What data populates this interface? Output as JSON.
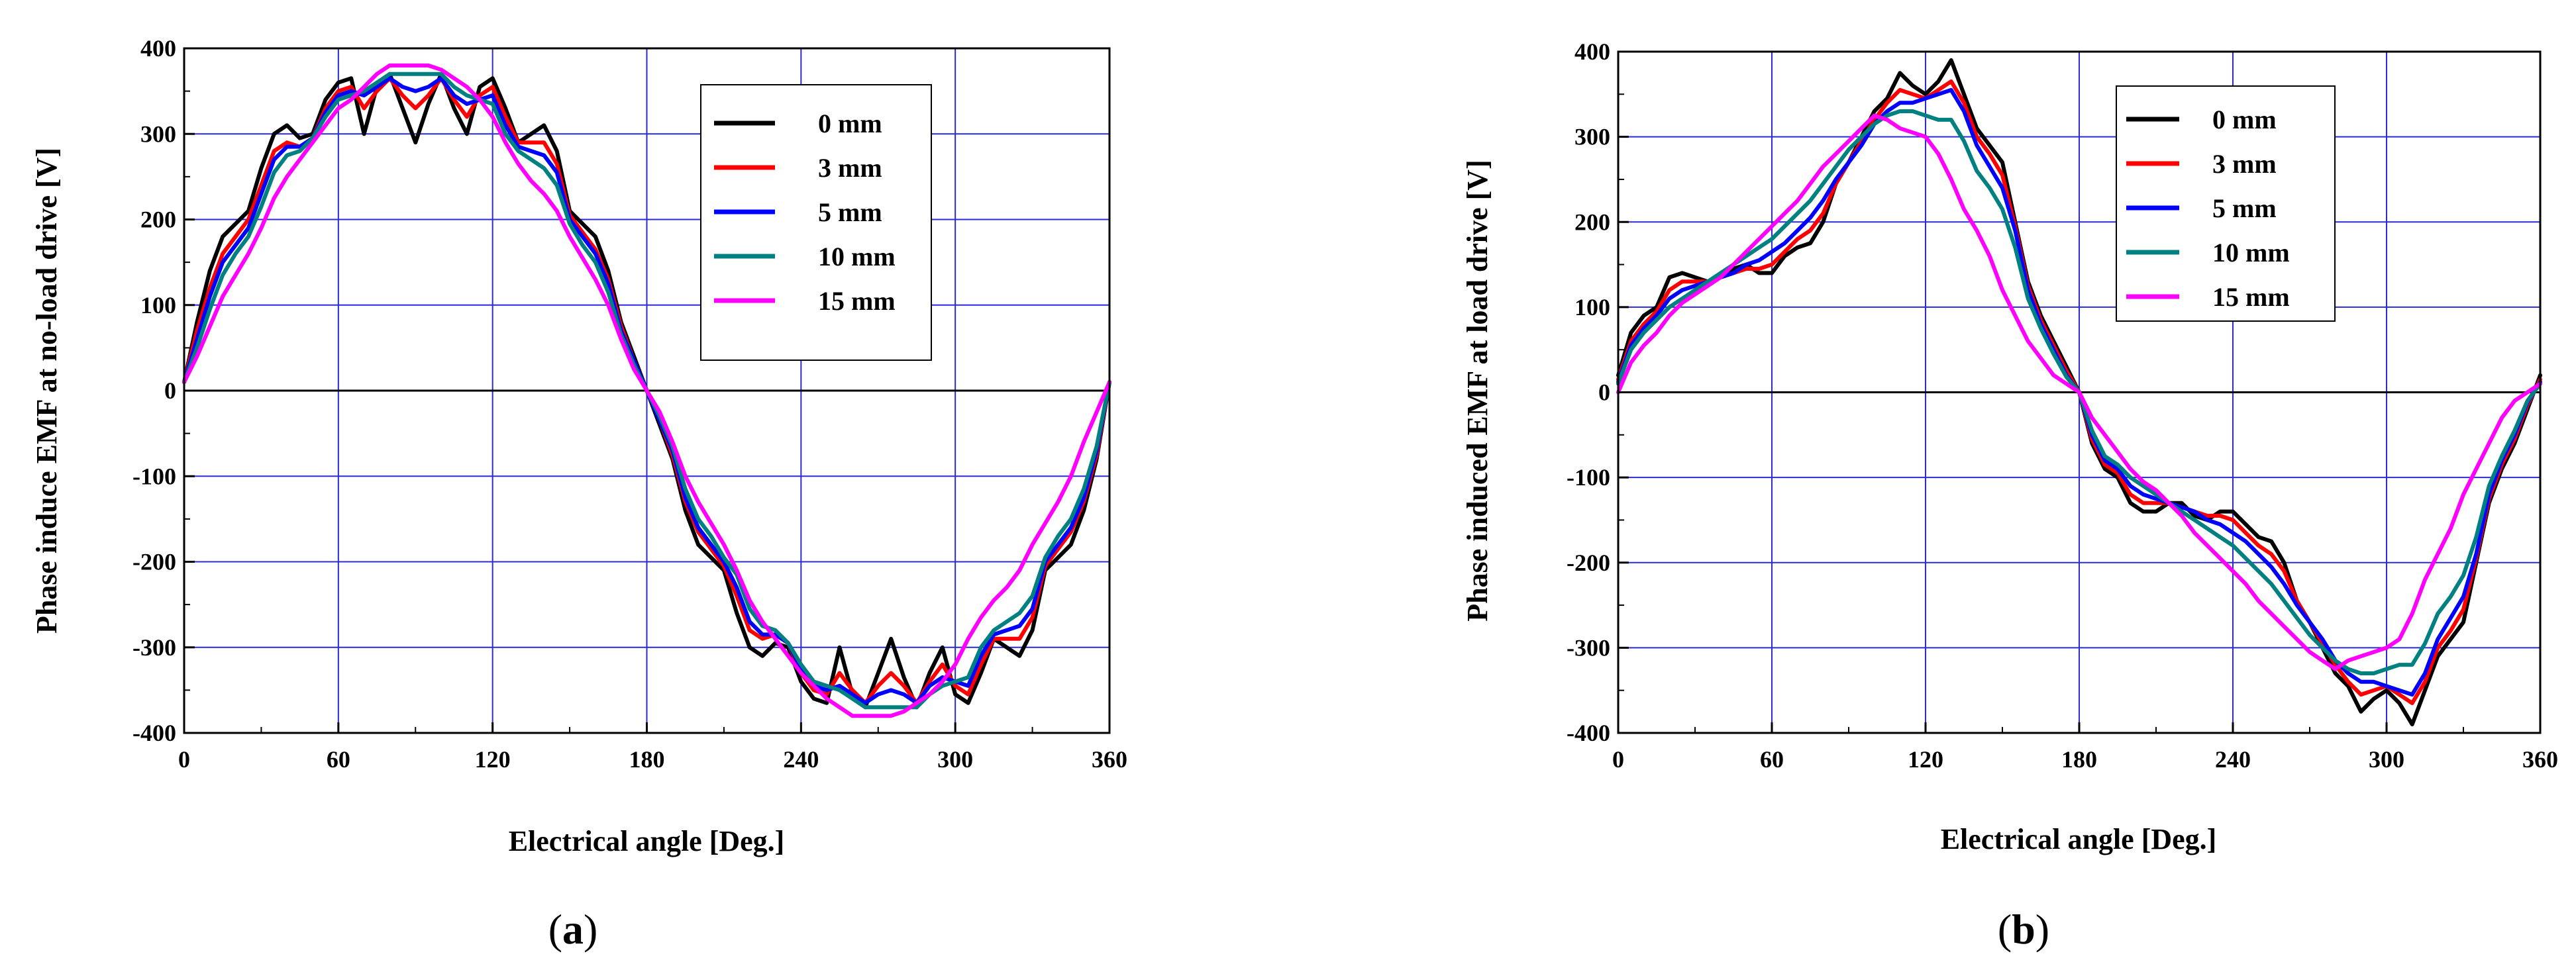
{
  "chart_data": [
    {
      "type": "line",
      "panel_label": "a",
      "title": "",
      "xlabel": "Electrical angle [Deg.]",
      "ylabel": "Phase induce EMF at no-load drive [V]",
      "xlim": [
        0,
        360
      ],
      "ylim": [
        -400,
        400
      ],
      "xticks": [
        0,
        60,
        120,
        180,
        240,
        300,
        360
      ],
      "yticks": [
        400,
        300,
        200,
        100,
        0,
        -100,
        -200,
        -300,
        -400
      ],
      "grid": true,
      "legend_position": "top-right",
      "x": [
        0,
        5,
        10,
        15,
        20,
        25,
        30,
        35,
        40,
        45,
        50,
        55,
        60,
        65,
        70,
        75,
        80,
        85,
        90,
        95,
        100,
        105,
        110,
        115,
        120,
        125,
        130,
        135,
        140,
        145,
        150,
        155,
        160,
        165,
        170,
        175,
        180,
        185,
        190,
        195,
        200,
        205,
        210,
        215,
        220,
        225,
        230,
        235,
        240,
        245,
        250,
        255,
        260,
        265,
        270,
        275,
        280,
        285,
        290,
        295,
        300,
        305,
        310,
        315,
        320,
        325,
        330,
        335,
        340,
        345,
        350,
        355,
        360
      ],
      "series": [
        {
          "name": "0 mm",
          "color": "#000000",
          "values": [
            10,
            80,
            140,
            180,
            195,
            210,
            260,
            300,
            310,
            295,
            300,
            340,
            360,
            365,
            300,
            355,
            370,
            330,
            290,
            335,
            370,
            330,
            300,
            355,
            365,
            330,
            290,
            300,
            310,
            280,
            210,
            195,
            180,
            140,
            80,
            40,
            0,
            -40,
            -80,
            -140,
            -180,
            -195,
            -210,
            -260,
            -300,
            -310,
            -295,
            -300,
            -340,
            -360,
            -365,
            -300,
            -355,
            -370,
            -330,
            -290,
            -335,
            -370,
            -330,
            -300,
            -355,
            -365,
            -330,
            -290,
            -300,
            -310,
            -280,
            -210,
            -195,
            -180,
            -140,
            -80,
            10
          ]
        },
        {
          "name": "3 mm",
          "color": "#ff0000",
          "values": [
            10,
            70,
            120,
            160,
            180,
            200,
            240,
            280,
            290,
            285,
            295,
            330,
            350,
            355,
            330,
            350,
            365,
            345,
            330,
            345,
            365,
            340,
            320,
            345,
            355,
            320,
            290,
            290,
            290,
            265,
            205,
            185,
            165,
            130,
            75,
            35,
            0,
            -35,
            -75,
            -130,
            -165,
            -185,
            -205,
            -240,
            -280,
            -290,
            -285,
            -295,
            -330,
            -350,
            -355,
            -330,
            -350,
            -365,
            -345,
            -330,
            -345,
            -365,
            -340,
            -320,
            -345,
            -355,
            -320,
            -290,
            -290,
            -290,
            -265,
            -205,
            -185,
            -165,
            -130,
            -75,
            10
          ]
        },
        {
          "name": "5 mm",
          "color": "#0000ff",
          "values": [
            10,
            60,
            110,
            150,
            170,
            190,
            230,
            270,
            285,
            285,
            295,
            325,
            345,
            350,
            345,
            355,
            365,
            355,
            350,
            355,
            365,
            345,
            335,
            340,
            345,
            310,
            285,
            280,
            275,
            255,
            200,
            180,
            160,
            125,
            70,
            35,
            0,
            -35,
            -70,
            -125,
            -160,
            -180,
            -200,
            -230,
            -270,
            -285,
            -285,
            -295,
            -325,
            -345,
            -350,
            -345,
            -355,
            -365,
            -355,
            -350,
            -355,
            -365,
            -345,
            -335,
            -340,
            -345,
            -310,
            -285,
            -280,
            -275,
            -255,
            -200,
            -180,
            -160,
            -125,
            -70,
            10
          ]
        },
        {
          "name": "10 mm",
          "color": "#008080",
          "values": [
            10,
            50,
            95,
            135,
            160,
            180,
            215,
            255,
            275,
            280,
            295,
            320,
            340,
            345,
            350,
            360,
            370,
            370,
            370,
            370,
            370,
            355,
            345,
            340,
            335,
            300,
            280,
            270,
            260,
            240,
            195,
            170,
            150,
            115,
            65,
            30,
            0,
            -30,
            -65,
            -115,
            -150,
            -170,
            -195,
            -215,
            -255,
            -275,
            -280,
            -295,
            -320,
            -340,
            -345,
            -350,
            -360,
            -370,
            -370,
            -370,
            -370,
            -370,
            -355,
            -345,
            -340,
            -335,
            -300,
            -280,
            -270,
            -260,
            -240,
            -195,
            -170,
            -150,
            -115,
            -65,
            10
          ]
        },
        {
          "name": "15 mm",
          "color": "#ff00ff",
          "values": [
            10,
            40,
            75,
            110,
            135,
            160,
            190,
            225,
            250,
            270,
            290,
            310,
            330,
            340,
            355,
            370,
            380,
            380,
            380,
            380,
            375,
            365,
            355,
            340,
            320,
            290,
            265,
            245,
            230,
            210,
            180,
            155,
            130,
            100,
            60,
            25,
            0,
            -25,
            -60,
            -100,
            -130,
            -155,
            -180,
            -210,
            -245,
            -270,
            -290,
            -310,
            -330,
            -345,
            -360,
            -370,
            -380,
            -380,
            -380,
            -380,
            -375,
            -365,
            -355,
            -340,
            -320,
            -290,
            -265,
            -245,
            -230,
            -210,
            -180,
            -155,
            -130,
            -100,
            -60,
            -25,
            10
          ]
        }
      ]
    },
    {
      "type": "line",
      "panel_label": "b",
      "title": "",
      "xlabel": "Electrical angle [Deg.]",
      "ylabel": "Phase induced EMF at load drive [V]",
      "xlim": [
        0,
        360
      ],
      "ylim": [
        -400,
        400
      ],
      "xticks": [
        0,
        60,
        120,
        180,
        240,
        300,
        360
      ],
      "yticks": [
        400,
        300,
        200,
        100,
        0,
        -100,
        -200,
        -300,
        -400
      ],
      "grid": true,
      "legend_position": "top-center",
      "x": [
        0,
        5,
        10,
        15,
        20,
        25,
        30,
        35,
        40,
        45,
        50,
        55,
        60,
        65,
        70,
        75,
        80,
        85,
        90,
        95,
        100,
        105,
        110,
        115,
        120,
        125,
        130,
        135,
        140,
        145,
        150,
        155,
        160,
        165,
        170,
        175,
        180,
        185,
        190,
        195,
        200,
        205,
        210,
        215,
        220,
        225,
        230,
        235,
        240,
        245,
        250,
        255,
        260,
        265,
        270,
        275,
        280,
        285,
        290,
        295,
        300,
        305,
        310,
        315,
        320,
        325,
        330,
        335,
        340,
        345,
        350,
        355,
        360
      ],
      "series": [
        {
          "name": "0 mm",
          "color": "#000000",
          "values": [
            20,
            70,
            90,
            100,
            135,
            140,
            135,
            130,
            135,
            145,
            150,
            140,
            140,
            160,
            170,
            175,
            200,
            245,
            270,
            300,
            330,
            345,
            375,
            360,
            350,
            365,
            390,
            350,
            310,
            290,
            270,
            200,
            130,
            90,
            60,
            30,
            0,
            -60,
            -90,
            -100,
            -130,
            -140,
            -140,
            -130,
            -130,
            -145,
            -150,
            -140,
            -140,
            -155,
            -170,
            -175,
            -200,
            -245,
            -270,
            -300,
            -330,
            -345,
            -375,
            -360,
            -350,
            -365,
            -390,
            -350,
            -310,
            -290,
            -270,
            -200,
            -130,
            -90,
            -60,
            -20,
            20
          ]
        },
        {
          "name": "3 mm",
          "color": "#ff0000",
          "values": [
            15,
            60,
            80,
            95,
            120,
            130,
            130,
            130,
            135,
            140,
            145,
            145,
            150,
            165,
            180,
            190,
            210,
            245,
            270,
            295,
            320,
            340,
            355,
            350,
            345,
            355,
            365,
            340,
            300,
            280,
            255,
            195,
            125,
            85,
            55,
            25,
            0,
            -55,
            -85,
            -95,
            -120,
            -130,
            -130,
            -130,
            -135,
            -140,
            -145,
            -145,
            -150,
            -165,
            -180,
            -190,
            -210,
            -245,
            -270,
            -295,
            -320,
            -340,
            -355,
            -350,
            -345,
            -355,
            -365,
            -340,
            -300,
            -280,
            -255,
            -195,
            -125,
            -85,
            -55,
            -15,
            15
          ]
        },
        {
          "name": "5 mm",
          "color": "#0000ff",
          "values": [
            12,
            55,
            75,
            90,
            110,
            120,
            125,
            130,
            135,
            140,
            150,
            155,
            165,
            175,
            190,
            205,
            225,
            250,
            270,
            290,
            315,
            330,
            340,
            340,
            345,
            350,
            355,
            330,
            290,
            265,
            240,
            190,
            120,
            80,
            50,
            20,
            0,
            -50,
            -80,
            -90,
            -110,
            -120,
            -125,
            -130,
            -135,
            -140,
            -150,
            -155,
            -165,
            -175,
            -190,
            -205,
            -225,
            -250,
            -270,
            -290,
            -315,
            -330,
            -340,
            -340,
            -345,
            -350,
            -355,
            -330,
            -290,
            -265,
            -240,
            -190,
            -120,
            -80,
            -50,
            -12,
            12
          ]
        },
        {
          "name": "10 mm",
          "color": "#008080",
          "values": [
            10,
            50,
            70,
            85,
            100,
            110,
            120,
            130,
            140,
            150,
            160,
            170,
            180,
            195,
            210,
            225,
            245,
            265,
            285,
            300,
            315,
            325,
            330,
            330,
            325,
            320,
            320,
            295,
            260,
            240,
            215,
            170,
            110,
            75,
            45,
            18,
            0,
            -45,
            -75,
            -85,
            -100,
            -110,
            -120,
            -130,
            -140,
            -150,
            -160,
            -170,
            -180,
            -195,
            -210,
            -225,
            -245,
            -265,
            -285,
            -300,
            -315,
            -325,
            -330,
            -330,
            -325,
            -320,
            -320,
            -295,
            -260,
            -240,
            -215,
            -170,
            -110,
            -75,
            -45,
            -10,
            10
          ]
        },
        {
          "name": "15 mm",
          "color": "#ff00ff",
          "values": [
            0,
            35,
            55,
            70,
            90,
            105,
            115,
            125,
            135,
            150,
            165,
            180,
            195,
            210,
            225,
            245,
            265,
            280,
            295,
            310,
            325,
            320,
            310,
            305,
            300,
            280,
            250,
            215,
            190,
            160,
            120,
            90,
            60,
            40,
            20,
            10,
            0,
            -30,
            -50,
            -70,
            -90,
            -105,
            -115,
            -130,
            -145,
            -165,
            -180,
            -195,
            -210,
            -225,
            -245,
            -260,
            -275,
            -290,
            -305,
            -315,
            -325,
            -315,
            -310,
            -305,
            -300,
            -290,
            -260,
            -220,
            -190,
            -160,
            -120,
            -90,
            -60,
            -30,
            -10,
            0,
            10
          ]
        }
      ]
    }
  ]
}
